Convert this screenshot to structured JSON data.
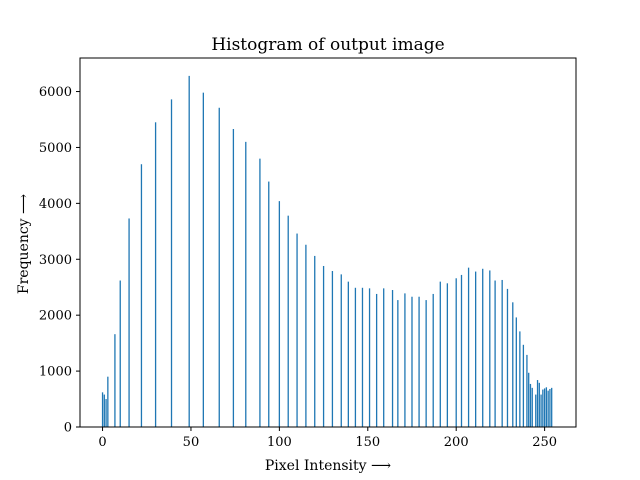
{
  "chart_data": {
    "type": "bar",
    "title": "Histogram of output image",
    "xlabel": "Pixel Intensity ⟶",
    "ylabel": "Frequency ⟶",
    "xlim": [
      -12.75,
      267.75
    ],
    "ylim": [
      0,
      6600
    ],
    "grid": false,
    "bar_color": "#1f77b4",
    "xticks": [
      0,
      50,
      100,
      150,
      200,
      250
    ],
    "yticks": [
      0,
      1000,
      2000,
      3000,
      4000,
      5000,
      6000
    ],
    "x": [
      0,
      1,
      2,
      3,
      7,
      10,
      15,
      22,
      30,
      39,
      49,
      57,
      66,
      74,
      81,
      89,
      94,
      100,
      105,
      110,
      115,
      120,
      125,
      130,
      135,
      139,
      143,
      147,
      151,
      155,
      159,
      164,
      167,
      171,
      175,
      179,
      183,
      187,
      191,
      195,
      200,
      203,
      207,
      211,
      215,
      219,
      222,
      226,
      229,
      232,
      234,
      236,
      238,
      240,
      241,
      242,
      243,
      245,
      246,
      247,
      248,
      249,
      250,
      251,
      252,
      253,
      254
    ],
    "values": [
      620,
      580,
      500,
      900,
      1660,
      2620,
      3730,
      4700,
      5450,
      5860,
      6280,
      5980,
      5710,
      5330,
      5100,
      4800,
      4390,
      4040,
      3780,
      3460,
      3260,
      3060,
      2880,
      2790,
      2730,
      2600,
      2490,
      2490,
      2480,
      2380,
      2480,
      2450,
      2270,
      2390,
      2330,
      2330,
      2270,
      2380,
      2600,
      2570,
      2660,
      2720,
      2850,
      2780,
      2830,
      2800,
      2620,
      2630,
      2470,
      2230,
      1960,
      1710,
      1470,
      1290,
      970,
      770,
      700,
      580,
      840,
      790,
      580,
      670,
      690,
      710,
      650,
      680,
      700
    ]
  }
}
